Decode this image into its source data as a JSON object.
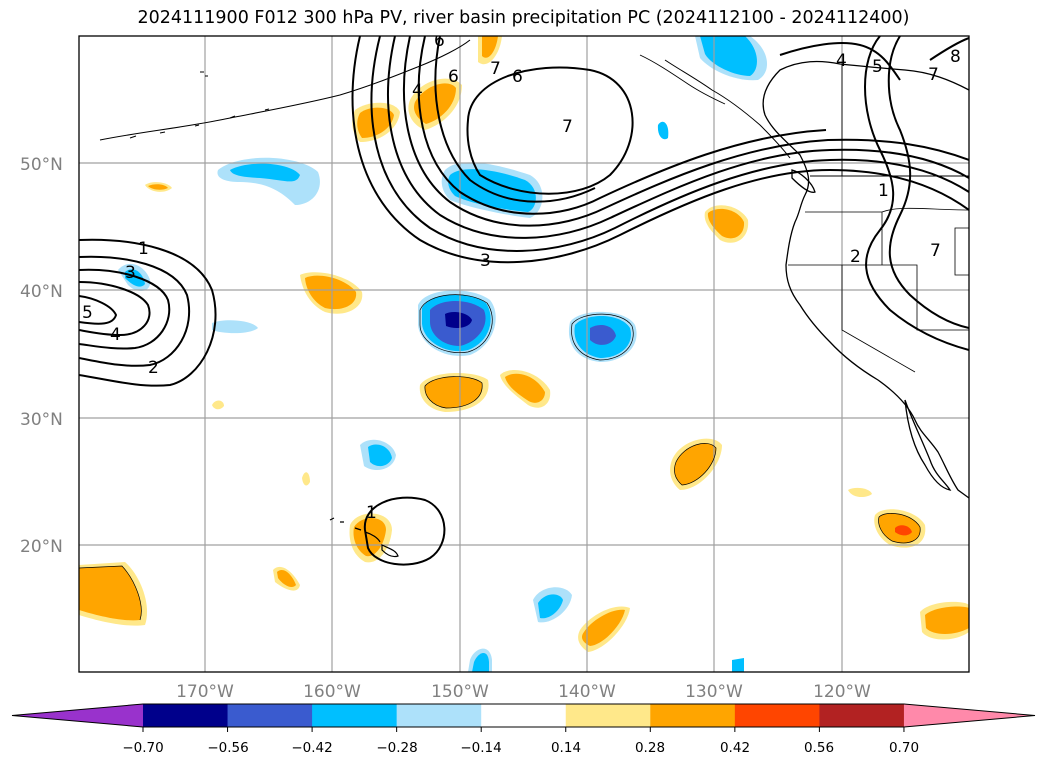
{
  "title": "2024111900 F012 300 hPa PV, river basin precipitation PC (2024112100 - 2024112400)",
  "lat_labels": [
    "50°N",
    "40°N",
    "30°N",
    "20°N"
  ],
  "lon_labels": [
    "170°W",
    "160°W",
    "150°W",
    "140°W",
    "130°W",
    "120°W"
  ],
  "colorbar": {
    "tick_labels": [
      "−0.70",
      "−0.56",
      "−0.42",
      "−0.28",
      "−0.14",
      "0.14",
      "0.28",
      "0.42",
      "0.56",
      "0.70"
    ],
    "colors": [
      "#9932CC",
      "#00008B",
      "#3A5BCF",
      "#00BFFF",
      "#ADE1FA",
      "#FFFFFF",
      "#FFE88A",
      "#FFA500",
      "#FF4500",
      "#B22222",
      "#FF89AA"
    ]
  },
  "pv_contour_labels": [
    "1",
    "3",
    "4",
    "2",
    "5",
    "3",
    "4",
    "6",
    "7",
    "6",
    "7",
    "4",
    "5",
    "7",
    "8",
    "1",
    "6",
    "2",
    "7",
    "1"
  ],
  "colors": {
    "map_border": "#000000",
    "gridline": "#a0a0a0",
    "coast": "#000000"
  }
}
